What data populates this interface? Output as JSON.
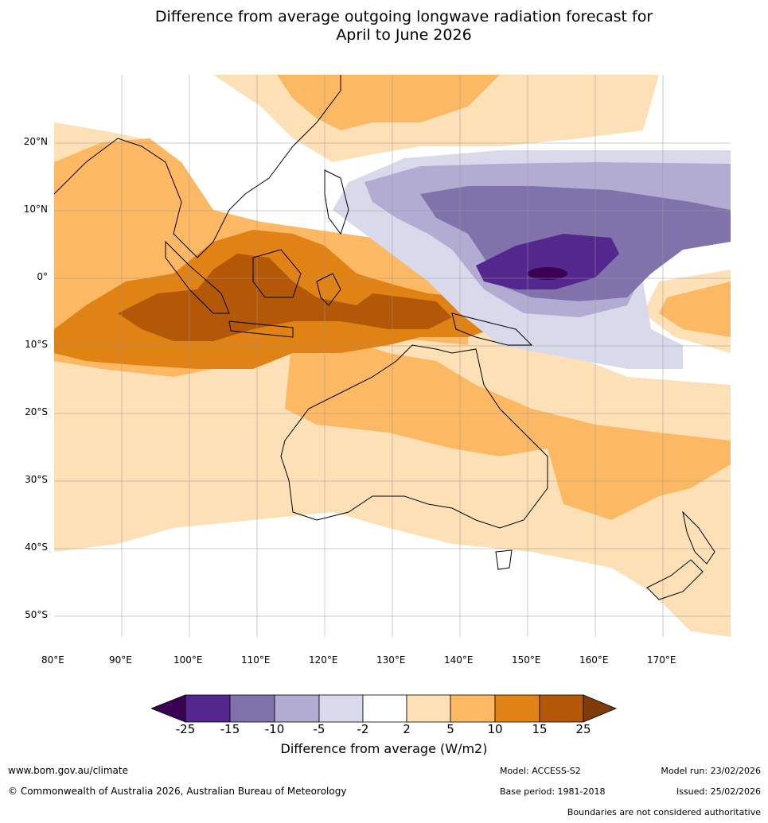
{
  "title_line1": "Difference from average outgoing longwave radiation forecast for",
  "title_line2": "April to June 2026",
  "lat_labels": [
    "20°N",
    "10°N",
    "0°",
    "10°S",
    "20°S",
    "30°S",
    "40°S",
    "50°S"
  ],
  "lon_labels": [
    "80°E",
    "90°E",
    "100°E",
    "110°E",
    "120°E",
    "130°E",
    "140°E",
    "150°E",
    "160°E",
    "170°E"
  ],
  "colorbar": {
    "ticks": [
      "-25",
      "-15",
      "-10",
      "-5",
      "-2",
      "2",
      "5",
      "10",
      "15",
      "25"
    ],
    "colors": [
      "#3a0054",
      "#54278f",
      "#8073ac",
      "#b2abd2",
      "#d8daeb",
      "#ffffff",
      "#fee0b6",
      "#fdb863",
      "#e08214",
      "#b35806",
      "#7f3b08"
    ],
    "label": "Difference from average (W/m2)"
  },
  "footer": {
    "url": "www.bom.gov.au/climate",
    "copyright": "© Commonwealth of Australia 2026, Australian Bureau of Meteorology",
    "model": "Model: ACCESS-S2",
    "base_period": "Base period: 1981-2018",
    "model_run": "Model run: 23/02/2026",
    "issued": "Issued: 25/02/2026",
    "disclaimer": "Boundaries are not considered authoritative"
  }
}
